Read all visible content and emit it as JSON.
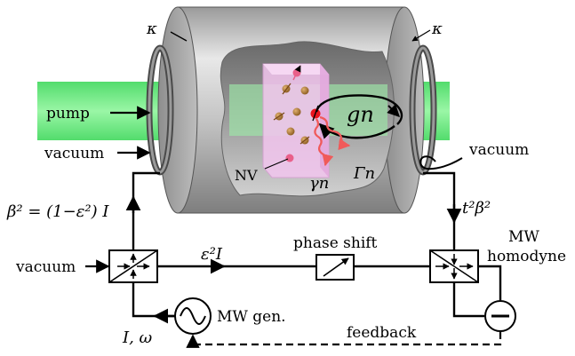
{
  "labels": {
    "kappa_left": "κ",
    "kappa_right": "κ",
    "pump": "pump",
    "vacuum_left": "vacuum",
    "vacuum_right": "vacuum",
    "vacuum_bottom": "vacuum",
    "beta_eq": "β² = (1−ε²) I",
    "eps_I": "ε²I",
    "phase_shift": "phase shift",
    "mw_homodyne_1": "MW",
    "mw_homodyne_2": "homodyne",
    "t2beta2": "t²β²",
    "mw_gen": "MW gen.",
    "I_omega": "I, ω",
    "feedback": "feedback",
    "nv": "NV",
    "g_n": "gn",
    "gamma_n": "γn",
    "Gamma_n": "Γn"
  },
  "colors": {
    "pump_beam": "#4ee86a",
    "cavity_body": "#c8c8c8",
    "nv_crystal": "#f3c6ef",
    "emission_wave": "#f05a5a",
    "active_spin": "#e8141e"
  }
}
